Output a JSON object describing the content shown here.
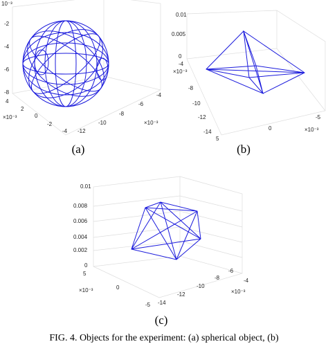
{
  "panels": [
    {
      "label": "(a)",
      "z_ticks": [
        "-2",
        "-4",
        "-6",
        "-8"
      ],
      "z_exp": "10⁻³",
      "left_ticks": [
        "4",
        "2",
        "0",
        "-2",
        "-4"
      ],
      "left_exp": "×10⁻³",
      "right_ticks": [
        "-12",
        "-10",
        "-8",
        "-6",
        "-4"
      ],
      "right_exp": "×10⁻³"
    },
    {
      "label": "(b)",
      "z_ticks": [
        "0.01",
        "0.005",
        "0"
      ],
      "left_ticks": [
        "-4",
        "-8",
        "-10",
        "-12",
        "-14"
      ],
      "left_exp": "×10⁻³",
      "right_ticks": [
        "5",
        "0",
        "-5"
      ],
      "right_exp": "×10⁻³"
    },
    {
      "label": "(c)",
      "z_ticks": [
        "0.01",
        "0.008",
        "0.006",
        "0.004",
        "0.002",
        "0"
      ],
      "left_ticks": [
        "5",
        "0",
        "-5"
      ],
      "left_exp": "×10⁻³",
      "right_ticks": [
        "-14",
        "-12",
        "-10",
        "-8",
        "-6",
        "-4"
      ],
      "right_exp": "×10⁻³"
    }
  ],
  "caption": "FIG. 4. Objects for the experiment: (a) spherical object, (b)"
}
